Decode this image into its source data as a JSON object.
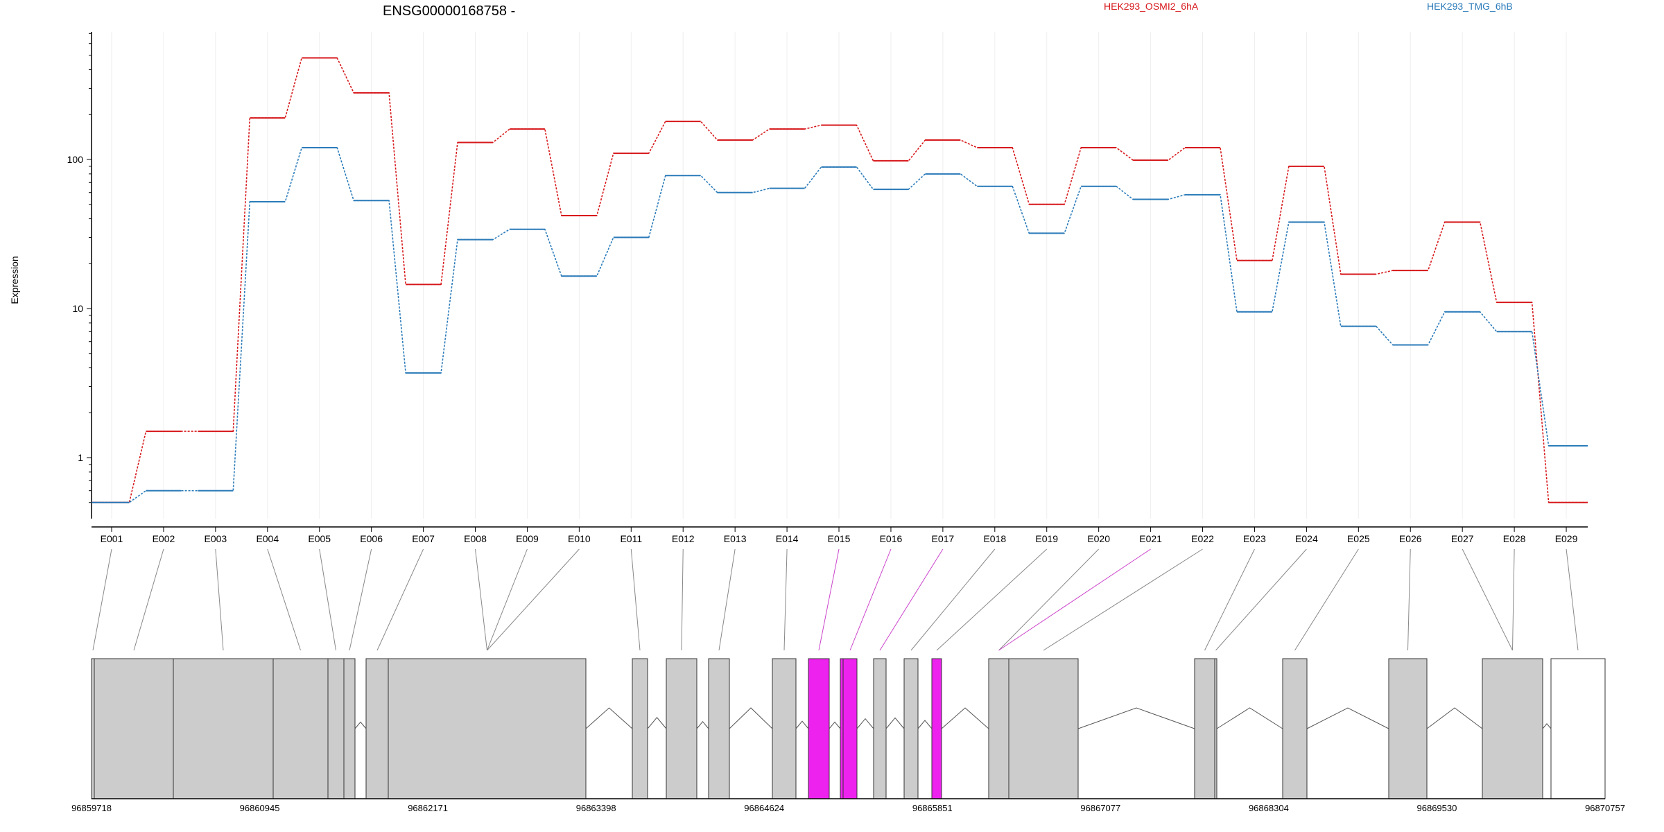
{
  "chart_data": {
    "type": "line",
    "title": "ENSG00000168758 -",
    "ylabel": "Expression",
    "yscale": "log",
    "yticks": [
      1,
      10,
      100
    ],
    "ylim": [
      0.45,
      750
    ],
    "categories": [
      "E001",
      "E002",
      "E003",
      "E004",
      "E005",
      "E006",
      "E007",
      "E008",
      "E009",
      "E010",
      "E011",
      "E012",
      "E013",
      "E014",
      "E015",
      "E016",
      "E017",
      "E018",
      "E019",
      "E020",
      "E021",
      "E022",
      "E023",
      "E024",
      "E025",
      "E026",
      "E027",
      "E028",
      "E029"
    ],
    "series": [
      {
        "name": "HEK293_OSMI2_6hA",
        "color": "#d7191c",
        "values": [
          0.5,
          1.5,
          1.5,
          190,
          480,
          280,
          14.5,
          130,
          160,
          42,
          110,
          180,
          135,
          160,
          170,
          98,
          135,
          120,
          50,
          120,
          99,
          120,
          21,
          90,
          17,
          18,
          38,
          11,
          0.5
        ]
      },
      {
        "name": "HEK293_TMG_6hB",
        "color": "#2b7bb9",
        "values": [
          0.5,
          0.6,
          0.6,
          52,
          120,
          53,
          3.7,
          29,
          34,
          16.5,
          30,
          78,
          60,
          64,
          89,
          63,
          80,
          66,
          32,
          66,
          54,
          58,
          9.5,
          38,
          7.6,
          5.7,
          9.5,
          7,
          1.2
        ]
      }
    ],
    "highlighted_exons": [
      "E015",
      "E016",
      "E017",
      "E021"
    ],
    "gene_model": {
      "coordinates": [
        "96859718",
        "96860945",
        "96862171",
        "96863398",
        "96864624",
        "96865851",
        "96867077",
        "96868304",
        "96869530",
        "96870757"
      ],
      "genomic_range": [
        96859718,
        96870757
      ]
    }
  }
}
